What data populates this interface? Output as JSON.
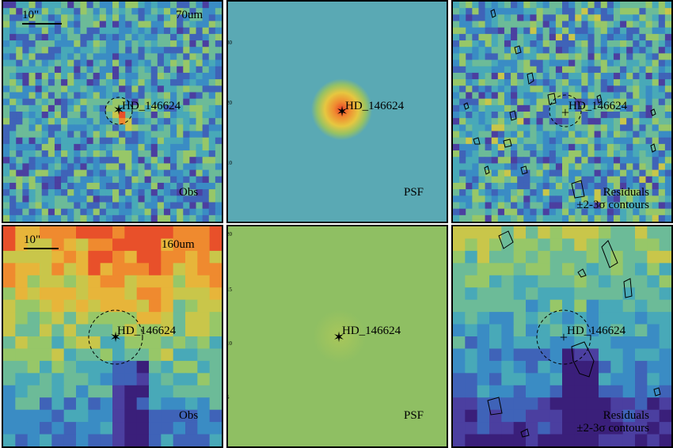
{
  "panels": {
    "r1c1": {
      "band": "70um",
      "scale": "10\"",
      "source": "HD_146624",
      "tag": "Obs"
    },
    "r1c2": {
      "source": "HD_146624",
      "tag": "PSF"
    },
    "r1c3": {
      "source": "HD_146624",
      "tag_line1": "Residuals",
      "tag_line2": "±2-3σ contours"
    },
    "r2c1": {
      "band": "160um",
      "scale": "10\"",
      "source": "HD_146624",
      "tag": "Obs"
    },
    "r2c2": {
      "source": "HD_146624",
      "tag": "PSF"
    },
    "r2c3": {
      "source": "HD_146624",
      "tag_line1": "Residuals",
      "tag_line2": "±2-3σ contours"
    }
  },
  "axis_ticks": {
    "psf_70": [
      "30",
      "20",
      "10"
    ],
    "psf_160": [
      "20",
      "15",
      "10",
      "5"
    ]
  },
  "colors": {
    "psf70_bg": "#5aa9b4",
    "psf160_bg": "#8fbf63",
    "source_marker": "#000000"
  }
}
